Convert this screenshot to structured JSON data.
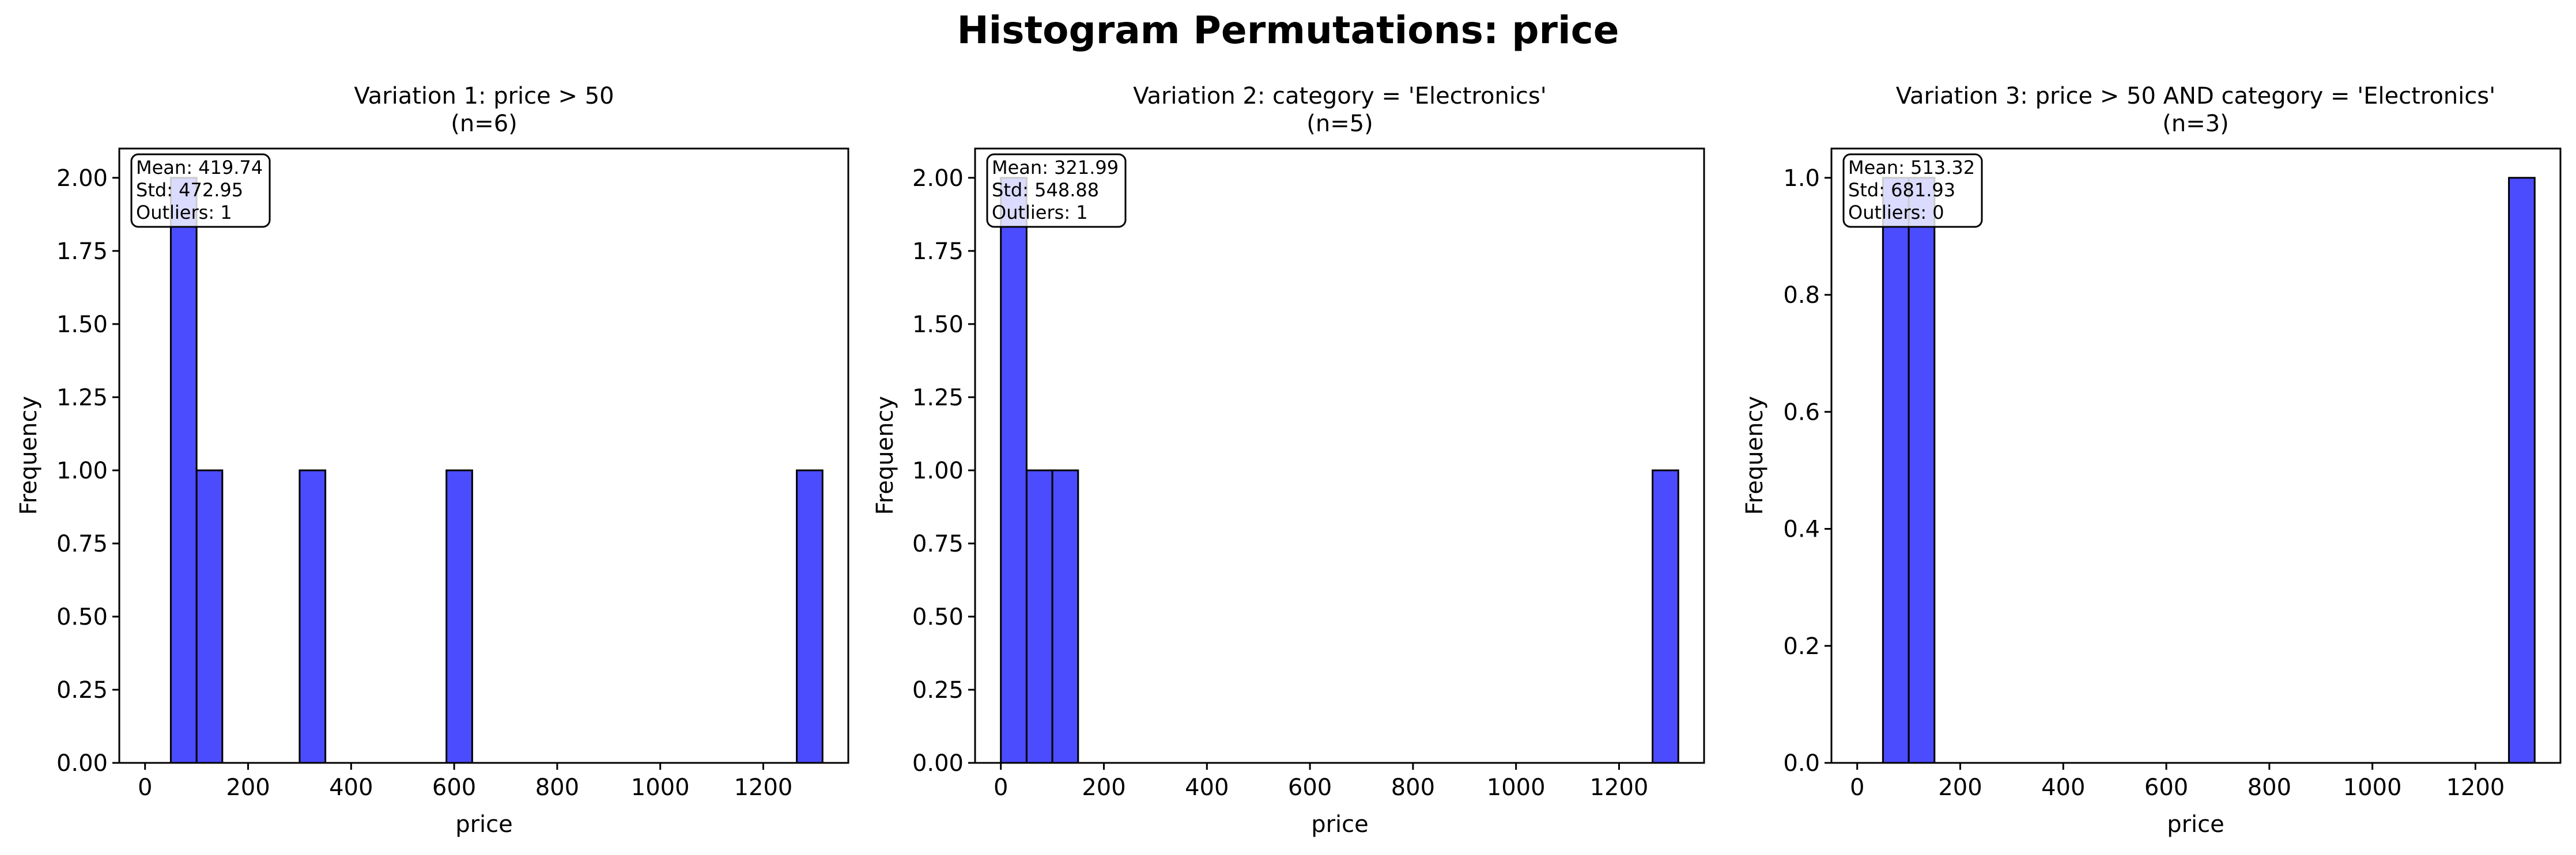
{
  "figure": {
    "title": "Histogram Permutations: price"
  },
  "colors": {
    "bar_fill": "#0000ff",
    "bar_opacity": 0.7,
    "bar_edge": "#000000"
  },
  "chart_data": [
    {
      "type": "bar",
      "title": "Variation 1: price > 50",
      "subtitle": "(n=6)",
      "xlabel": "price",
      "ylabel": "Frequency",
      "xlim": [
        -50,
        1365
      ],
      "ylim": [
        0,
        2.1
      ],
      "xticks": [
        0,
        200,
        400,
        600,
        800,
        1000,
        1200
      ],
      "yticks": [
        0.0,
        0.25,
        0.5,
        0.75,
        1.0,
        1.25,
        1.5,
        1.75,
        2.0
      ],
      "ytick_decimals": 2,
      "bins": [
        {
          "x0": 50,
          "x1": 100,
          "count": 2
        },
        {
          "x0": 100,
          "x1": 150,
          "count": 1
        },
        {
          "x0": 300,
          "x1": 350,
          "count": 1
        },
        {
          "x0": 585,
          "x1": 635,
          "count": 1
        },
        {
          "x0": 1265,
          "x1": 1315,
          "count": 1
        }
      ],
      "stats": [
        "Mean: 419.74",
        "Std: 472.95",
        "Outliers: 1"
      ],
      "stats_placement": "top-left"
    },
    {
      "type": "bar",
      "title": "Variation 2: category = 'Electronics'",
      "subtitle": "(n=5)",
      "xlabel": "price",
      "ylabel": "Frequency",
      "xlim": [
        -50,
        1365
      ],
      "ylim": [
        0,
        2.1
      ],
      "xticks": [
        0,
        200,
        400,
        600,
        800,
        1000,
        1200
      ],
      "yticks": [
        0.0,
        0.25,
        0.5,
        0.75,
        1.0,
        1.25,
        1.5,
        1.75,
        2.0
      ],
      "ytick_decimals": 2,
      "bins": [
        {
          "x0": 0,
          "x1": 50,
          "count": 2
        },
        {
          "x0": 50,
          "x1": 100,
          "count": 1
        },
        {
          "x0": 100,
          "x1": 150,
          "count": 1
        },
        {
          "x0": 1265,
          "x1": 1315,
          "count": 1
        }
      ],
      "stats": [
        "Mean: 321.99",
        "Std: 548.88",
        "Outliers: 1"
      ],
      "stats_placement": "top-left"
    },
    {
      "type": "bar",
      "title": "Variation 3: price > 50 AND category = 'Electronics'",
      "subtitle": "(n=3)",
      "xlabel": "price",
      "ylabel": "Frequency",
      "xlim": [
        -50,
        1365
      ],
      "ylim": [
        0,
        1.05
      ],
      "xticks": [
        0,
        200,
        400,
        600,
        800,
        1000,
        1200
      ],
      "yticks": [
        0.0,
        0.2,
        0.4,
        0.6,
        0.8,
        1.0
      ],
      "ytick_decimals": 1,
      "bins": [
        {
          "x0": 50,
          "x1": 100,
          "count": 1
        },
        {
          "x0": 100,
          "x1": 150,
          "count": 1
        },
        {
          "x0": 1265,
          "x1": 1315,
          "count": 1
        }
      ],
      "stats": [
        "Mean: 513.32",
        "Std: 681.93",
        "Outliers: 0"
      ],
      "stats_placement": "top-left"
    }
  ]
}
